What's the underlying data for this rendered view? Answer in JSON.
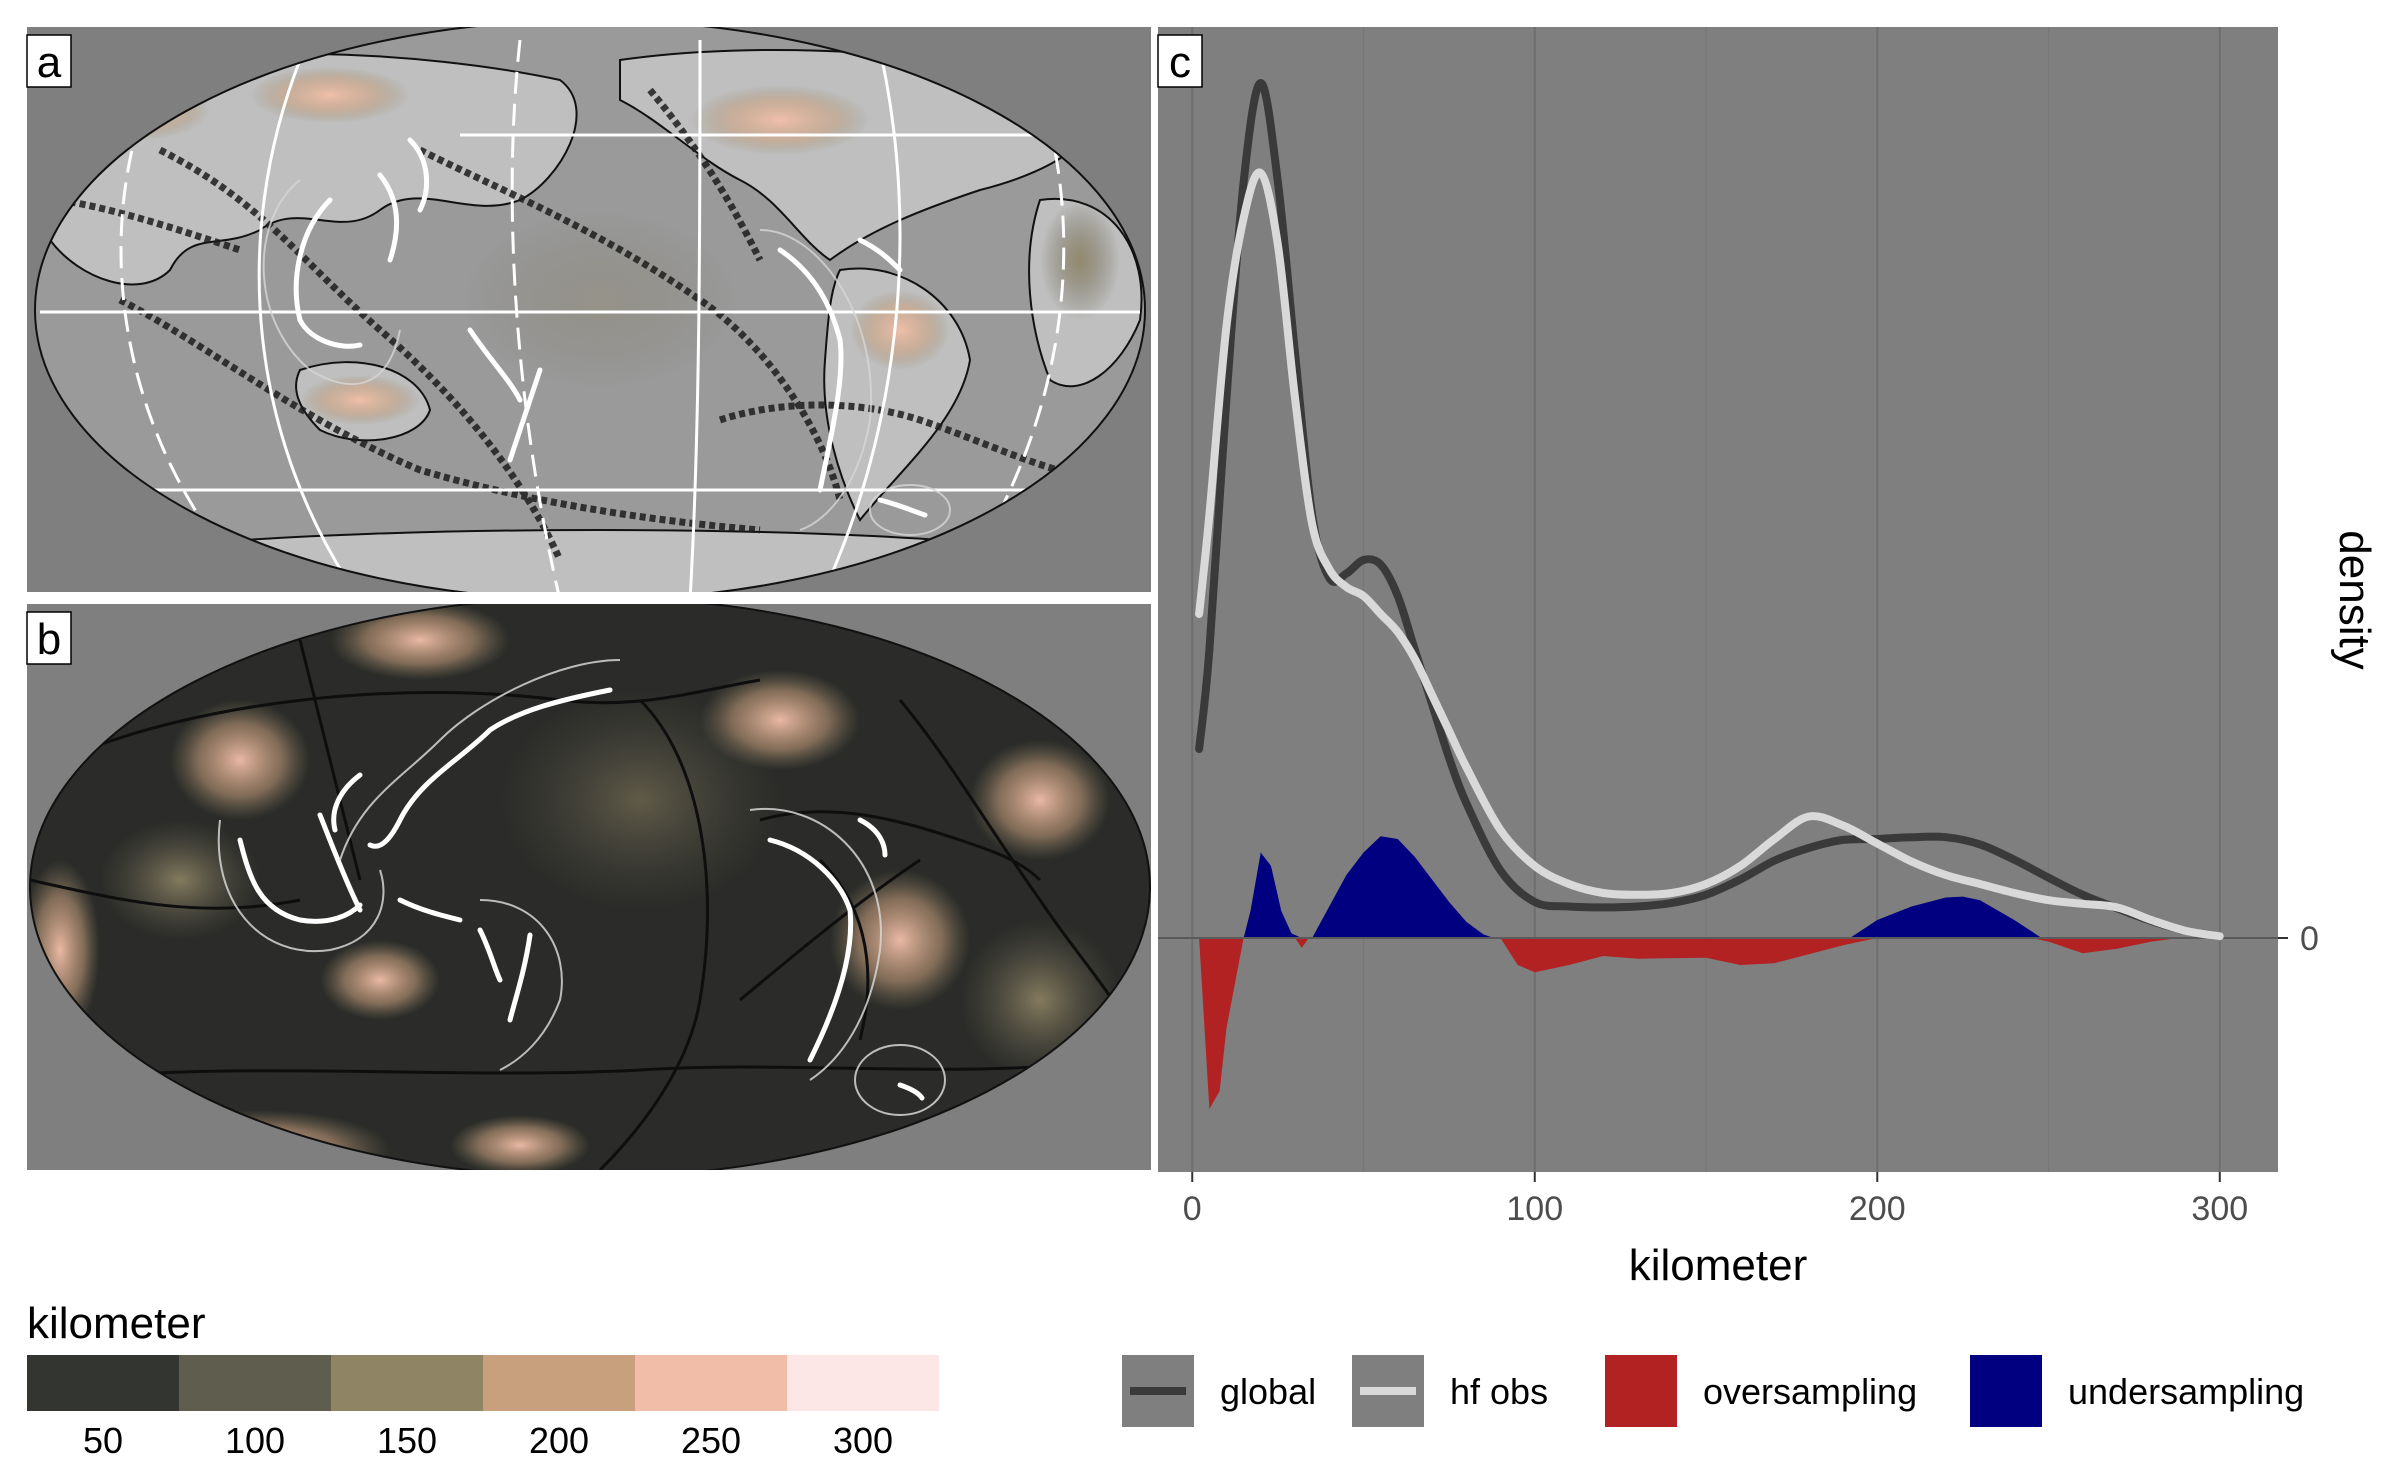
{
  "panels": {
    "a": "a",
    "b": "b",
    "c": "c"
  },
  "colorbar": {
    "title": "kilometer",
    "ticks": [
      "50",
      "100",
      "150",
      "200",
      "250",
      "300"
    ],
    "colors": [
      "#333531",
      "#5f5d4e",
      "#8f8464",
      "#c9a07e",
      "#f2bda8",
      "#fde6e6"
    ]
  },
  "colors": {
    "panel_bg": "#7f7f7f",
    "land": "#bfbfbf",
    "global": "#3a3a3a",
    "hf_obs": "#d9d9d9",
    "oversampling": "#b22222",
    "undersampling": "#000080"
  },
  "chart_data": {
    "type": "line",
    "xlabel": "kilometer",
    "ylabel": "density",
    "xlim": [
      -10,
      317
    ],
    "x_ticks": [
      0,
      100,
      200,
      300
    ],
    "y_ticks": [
      0
    ],
    "grid": true,
    "legend_position": "bottom",
    "series": [
      {
        "name": "global",
        "x": [
          2,
          5,
          10,
          15,
          20,
          25,
          30,
          35,
          40,
          45,
          50,
          55,
          60,
          65,
          70,
          75,
          80,
          90,
          100,
          110,
          120,
          130,
          140,
          150,
          160,
          170,
          180,
          190,
          200,
          210,
          220,
          230,
          240,
          250,
          260,
          270,
          280,
          290,
          300
        ],
        "y": [
          21.0,
          32.0,
          60.0,
          84.0,
          95.0,
          84.0,
          65.0,
          47.0,
          40.0,
          40.5,
          42.0,
          41.5,
          38.0,
          32.0,
          26.0,
          20.0,
          15.0,
          7.5,
          4.0,
          3.5,
          3.4,
          3.5,
          3.9,
          4.8,
          6.5,
          8.6,
          10.0,
          10.9,
          11.0,
          11.2,
          11.2,
          10.4,
          8.7,
          6.7,
          4.8,
          3.3,
          1.9,
          0.8,
          0.2
        ]
      },
      {
        "name": "hf obs",
        "x": [
          2,
          5,
          10,
          15,
          20,
          25,
          30,
          35,
          40,
          45,
          50,
          55,
          60,
          65,
          70,
          75,
          80,
          90,
          100,
          110,
          120,
          130,
          140,
          150,
          160,
          170,
          180,
          190,
          200,
          210,
          220,
          230,
          240,
          250,
          260,
          270,
          280,
          290,
          300
        ],
        "y": [
          36.0,
          47.0,
          68.0,
          80.0,
          85.0,
          77.0,
          60.0,
          46.0,
          41.0,
          39.0,
          38.0,
          36.0,
          34.0,
          31.0,
          27.0,
          23.0,
          19.0,
          12.0,
          8.0,
          6.0,
          5.0,
          4.8,
          5.0,
          6.0,
          8.0,
          11.0,
          13.5,
          12.5,
          10.5,
          8.5,
          7.0,
          6.0,
          5.0,
          4.2,
          3.8,
          3.4,
          2.0,
          0.8,
          0.2
        ]
      },
      {
        "name": "oversampling",
        "x": [
          2,
          5,
          8,
          10,
          12,
          15,
          30,
          32,
          34,
          90,
          95,
          100,
          110,
          120,
          130,
          150,
          160,
          170,
          180,
          190,
          200,
          245,
          250,
          260,
          270,
          280,
          288
        ],
        "y": [
          0,
          -19.0,
          -17.0,
          -10.0,
          -6.0,
          0,
          0,
          -1.1,
          0,
          0,
          -3.0,
          -3.8,
          -3.0,
          -2.0,
          -2.3,
          -2.2,
          -3.0,
          -2.8,
          -1.8,
          -0.8,
          0,
          0,
          -0.4,
          -1.7,
          -1.2,
          -0.4,
          0
        ]
      },
      {
        "name": "undersampling",
        "x": [
          15,
          17,
          20,
          23,
          26,
          29,
          32,
          35,
          40,
          45,
          50,
          55,
          60,
          65,
          70,
          75,
          80,
          85,
          88,
          192,
          200,
          210,
          220,
          225,
          230,
          240,
          248
        ],
        "y": [
          0,
          3.0,
          9.5,
          8.0,
          3.0,
          0.5,
          0,
          0,
          3.5,
          7.0,
          9.5,
          11.3,
          11.0,
          9.0,
          6.5,
          4.0,
          1.8,
          0.4,
          0,
          0,
          2.0,
          3.5,
          4.5,
          4.6,
          4.2,
          2.0,
          0
        ]
      }
    ]
  }
}
